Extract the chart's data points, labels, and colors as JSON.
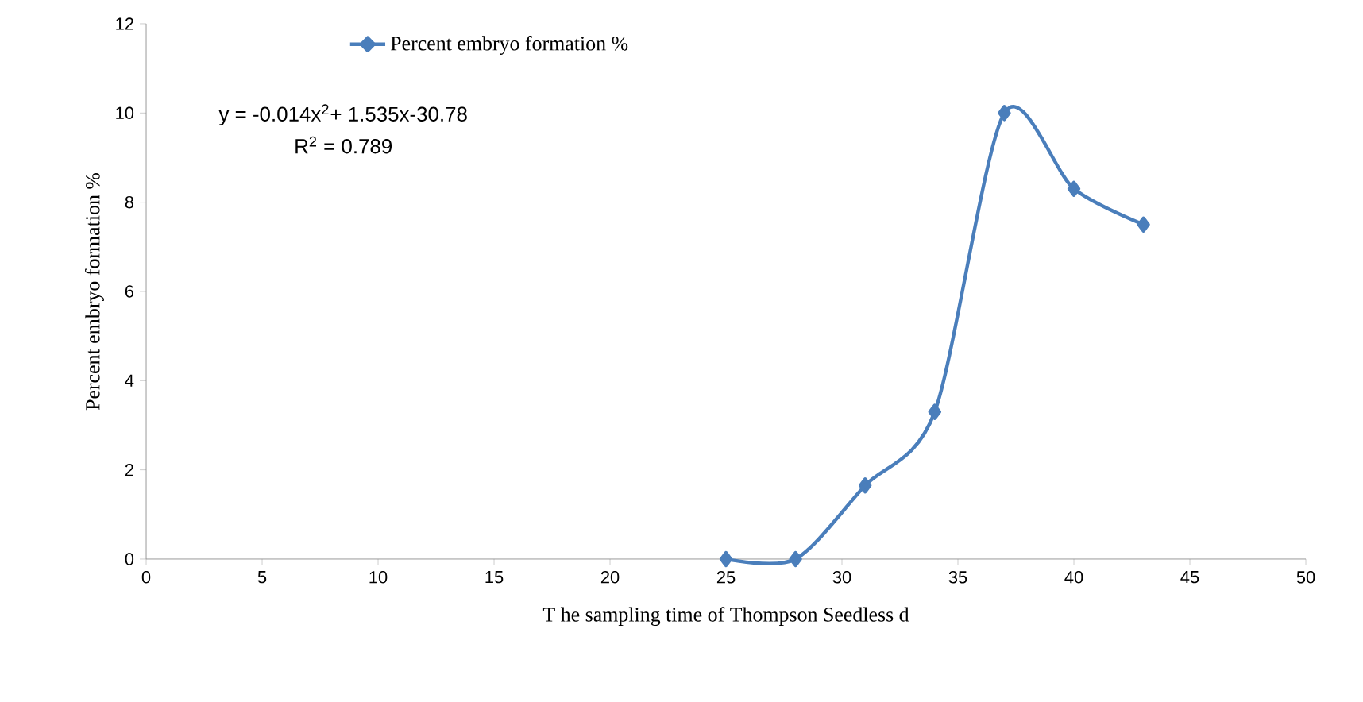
{
  "chart_data": {
    "type": "line",
    "xlabel": "T he sampling time of Thompson Seedless d",
    "ylabel": "Percent embryo formation %",
    "x": [
      25,
      28,
      31,
      34,
      37,
      40,
      43
    ],
    "series": [
      {
        "name": "Percent embryo formation %",
        "color": "#4a7ebb",
        "values": [
          0,
          0,
          1.65,
          3.3,
          10,
          8.3,
          7.5
        ]
      }
    ],
    "xlim": [
      0,
      50
    ],
    "xticks": [
      0,
      5,
      10,
      15,
      20,
      25,
      30,
      35,
      40,
      45,
      50
    ],
    "ylim": [
      0,
      12
    ],
    "yticks": [
      0,
      2,
      4,
      6,
      8,
      10,
      12
    ],
    "marker": "diamond",
    "line_style": "solid",
    "grid": false,
    "legend": "top left",
    "annotations": [
      "y = -0.014x$^{2}$+ 1.535x-30.78",
      "R$^{2}$ = 0.789"
    ]
  }
}
